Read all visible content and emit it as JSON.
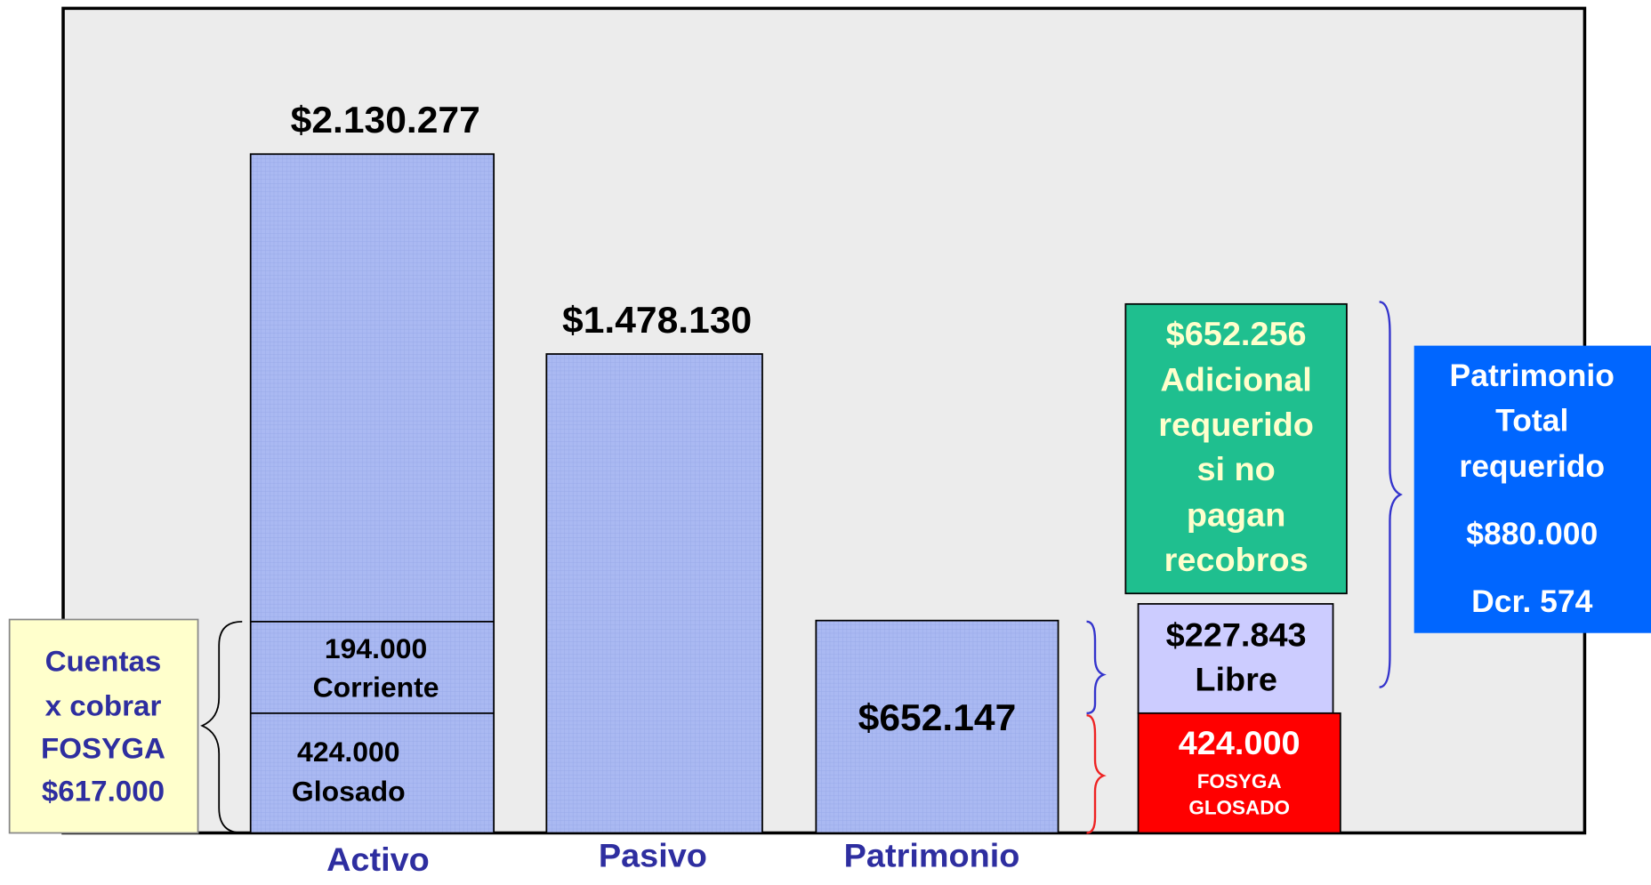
{
  "bars": [
    {
      "label": "Activo",
      "total": "$2.130.277",
      "segments": [
        {
          "value": "194.000",
          "name": "Corriente"
        },
        {
          "value": "424.000",
          "name": "Glosado"
        }
      ]
    },
    {
      "label": "Pasivo",
      "total": "$1.478.130"
    },
    {
      "label": "Patrimonio",
      "total": "$652.147"
    }
  ],
  "cuentas": [
    "Cuentas",
    "x cobrar",
    "FOSYGA",
    "$617.000"
  ],
  "adicional": [
    "$652.256",
    "Adicional",
    "requerido",
    "si no",
    "pagan",
    "recobros"
  ],
  "libre": [
    "$227.843",
    "Libre"
  ],
  "glosado": {
    "value": "424.000",
    "lines": [
      "FOSYGA",
      "GLOSADO"
    ]
  },
  "total_requerido": [
    "Patrimonio",
    "Total",
    "requerido",
    "$880.000",
    "Dcr. 574"
  ]
}
